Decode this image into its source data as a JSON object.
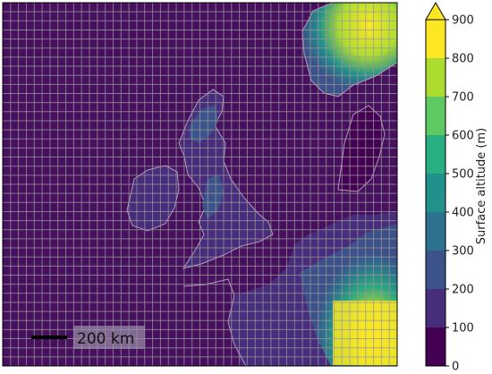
{
  "map": {
    "scale_bar_label": "200 km"
  },
  "colorbar": {
    "title": "Surface altitude (m)",
    "ticks": [
      "0",
      "100",
      "200",
      "300",
      "400",
      "500",
      "600",
      "700",
      "800",
      "900"
    ],
    "bins": [
      {
        "from": 0,
        "to": 100,
        "color": "#440154"
      },
      {
        "from": 100,
        "to": 200,
        "color": "#472d7b"
      },
      {
        "from": 200,
        "to": 300,
        "color": "#3b528b"
      },
      {
        "from": 300,
        "to": 400,
        "color": "#2c728e"
      },
      {
        "from": 400,
        "to": 500,
        "color": "#21918c"
      },
      {
        "from": 500,
        "to": 600,
        "color": "#28ae80"
      },
      {
        "from": 600,
        "to": 700,
        "color": "#5ec962"
      },
      {
        "from": 700,
        "to": 800,
        "color": "#addc30"
      },
      {
        "from": 800,
        "to": 900,
        "color": "#fde725"
      }
    ],
    "extend_max_color": "#fde725"
  },
  "colors": {
    "sea": "#46105f",
    "grid": "#9a9a9a",
    "coastline": "#b39ab8"
  }
}
